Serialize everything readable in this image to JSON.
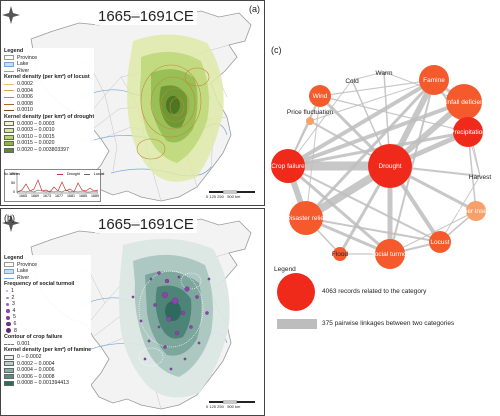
{
  "panel_a": {
    "label": "(a)",
    "title": "1665–1691CE",
    "legend_title": "Legend",
    "province": "Province",
    "lake": "Lake",
    "river": "River",
    "locust_heading": "Kernel density (per km²) of locust",
    "locust_levels": [
      "0.0002",
      "0.0004",
      "0.0006",
      "0.0008",
      "0.0010"
    ],
    "drought_heading": "Kernel density (per km²) of drought",
    "drought_levels": [
      "0.0000 – 0.0003",
      "0.0003 – 0.0010",
      "0.0010 – 0.0015",
      "0.0015 – 0.0020",
      "0.0020 – 0.003803397"
    ],
    "inset": {
      "ylabel": "No. of sites",
      "series": [
        "Drought",
        "Locust"
      ],
      "x_ticks": [
        "1665",
        "1669",
        "1673",
        "1677",
        "1681",
        "1685",
        "1689"
      ],
      "y_ticks": [
        "100",
        "50",
        "0"
      ]
    },
    "scale": [
      "0",
      "125",
      "250",
      "500"
    ],
    "scale_unit": "km"
  },
  "panel_b": {
    "label": "(b)",
    "title": "1665–1691CE",
    "legend_title": "Legend",
    "province": "Province",
    "lake": "Lake",
    "river": "River",
    "turmoil_heading": "Frequency of social turmoil",
    "turmoil_levels": [
      "1",
      "2",
      "3",
      "4",
      "5",
      "6",
      "8"
    ],
    "crop_heading": "Contour of crop failure",
    "crop_level": "0.001",
    "famine_heading": "Kernel density (per km²) of famine",
    "famine_levels": [
      "0 – 0.0002",
      "0.0002 – 0.0004",
      "0.0004 – 0.0006",
      "0.0006 – 0.0008",
      "0.0008 – 0.001394413"
    ],
    "scale": [
      "0",
      "125",
      "250",
      "500"
    ],
    "scale_unit": "km"
  },
  "panel_c": {
    "label": "(c)",
    "nodes": [
      "Cold",
      "Warm",
      "Famine",
      "Wind",
      "Rainfall deficiency",
      "Price fluctuation",
      "Precipitation",
      "Crop failure",
      "Drought",
      "Harvest",
      "Other insects",
      "Disaster relief",
      "Locust",
      "Flood",
      "Social turmoil"
    ],
    "legend_title": "Legend",
    "legend_node_text": "4063 records related to the category",
    "legend_edge_text": "375 pairwise linkages between two categories"
  },
  "colors": {
    "node_large": "#f02a1a",
    "node_mid": "#f55a2c",
    "node_small": "#f7a06a",
    "edge": "#bdbdbd",
    "drought_1": "#f1f4c8",
    "drought_2": "#d6e79b",
    "drought_3": "#b4d36e",
    "drought_4": "#8ab548",
    "drought_5": "#5e8c2c",
    "famine_1": "#e9f0ee",
    "famine_2": "#b7cfc9",
    "famine_3": "#86aea5",
    "famine_4": "#588d82",
    "famine_5": "#2f6a5e"
  }
}
